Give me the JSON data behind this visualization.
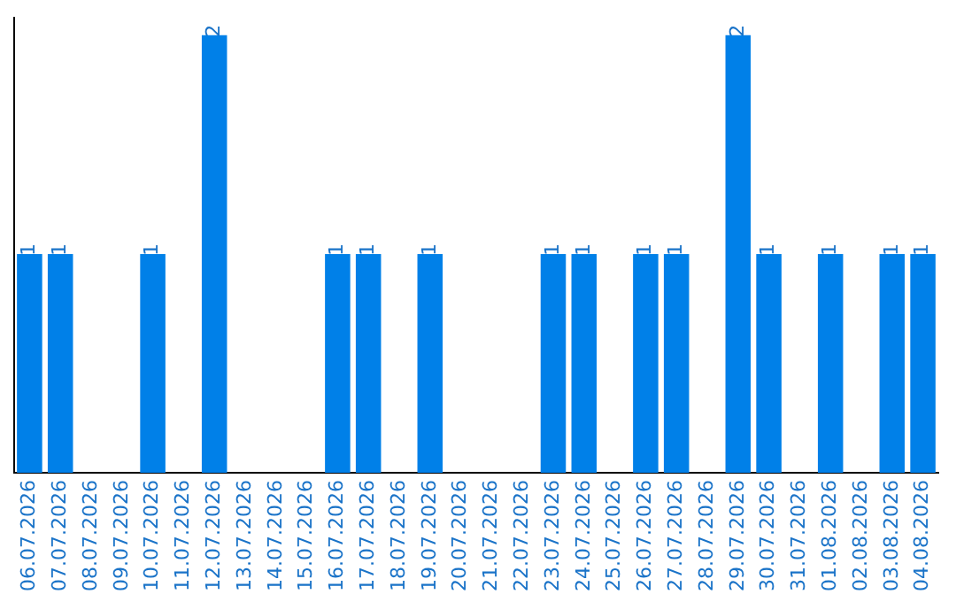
{
  "chart_data": {
    "type": "bar",
    "categories": [
      "06.07.2026",
      "07.07.2026",
      "08.07.2026",
      "09.07.2026",
      "10.07.2026",
      "11.07.2026",
      "12.07.2026",
      "13.07.2026",
      "14.07.2026",
      "15.07.2026",
      "16.07.2026",
      "17.07.2026",
      "18.07.2026",
      "19.07.2026",
      "20.07.2026",
      "21.07.2026",
      "22.07.2026",
      "23.07.2026",
      "24.07.2026",
      "25.07.2026",
      "26.07.2026",
      "27.07.2026",
      "28.07.2026",
      "29.07.2026",
      "30.07.2026",
      "31.07.2026",
      "01.08.2026",
      "02.08.2026",
      "03.08.2026",
      "04.08.2026"
    ],
    "values": [
      1,
      1,
      0,
      0,
      1,
      0,
      2,
      0,
      0,
      0,
      1,
      1,
      0,
      1,
      0,
      0,
      0,
      1,
      1,
      0,
      1,
      1,
      0,
      2,
      1,
      0,
      1,
      0,
      1,
      1
    ],
    "value_labels": [
      "1",
      "1",
      null,
      null,
      "1",
      null,
      "2",
      null,
      null,
      null,
      "1",
      "1",
      null,
      "1",
      null,
      null,
      null,
      "1",
      "1",
      null,
      "1",
      "1",
      null,
      "2",
      "1",
      null,
      "1",
      null,
      "1",
      "1"
    ],
    "color": "#0080e8",
    "ylim": [
      0,
      2.08
    ],
    "tick_labels": "x",
    "grid": false,
    "legend": false
  }
}
